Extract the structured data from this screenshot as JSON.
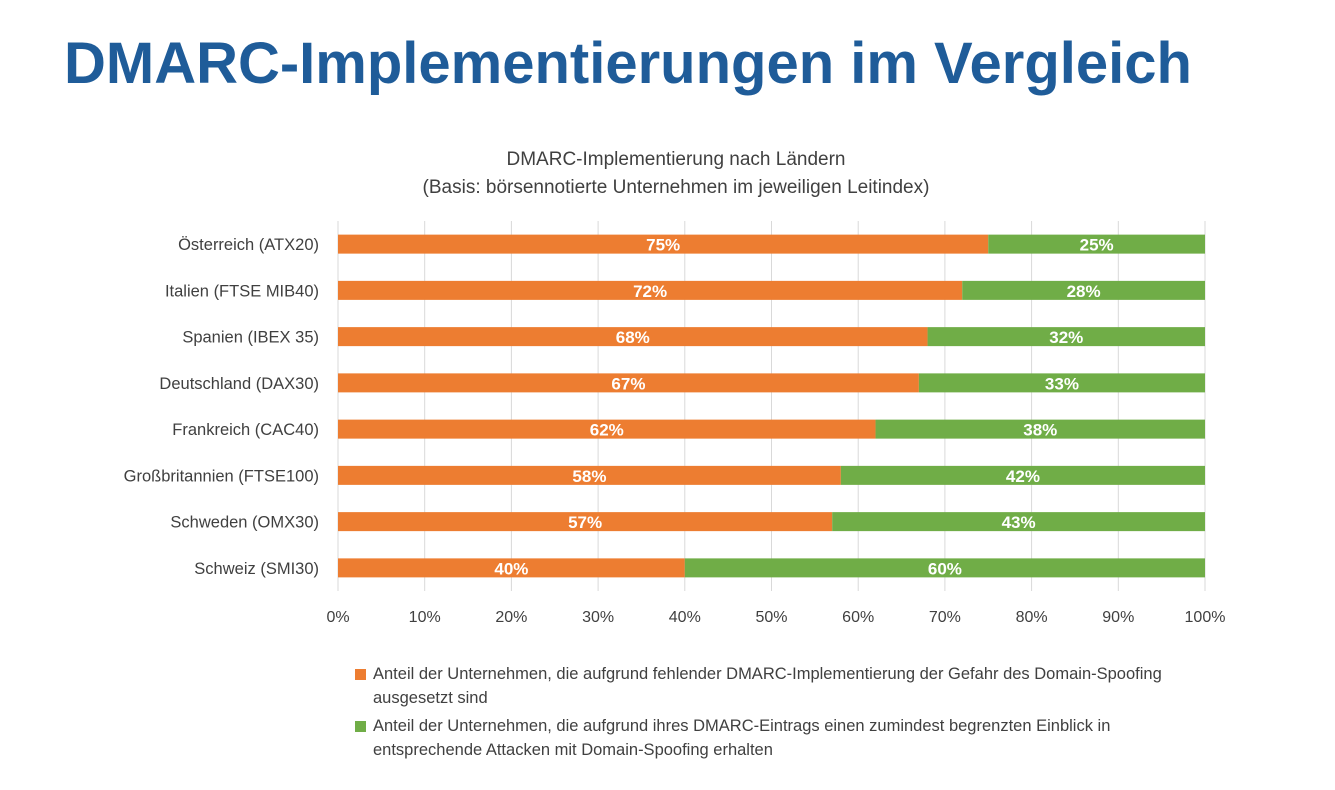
{
  "page": {
    "title": "DMARC-Implementierungen im Vergleich"
  },
  "colors": {
    "title": "#1f5c99",
    "series_1": "#ed7d31",
    "series_2": "#70ad47",
    "text": "#404040",
    "grid": "#d9d9d9"
  },
  "chart_data": {
    "type": "bar",
    "orientation": "horizontal",
    "stacked": true,
    "title": "DMARC-Implementierung nach Ländern",
    "subtitle": "(Basis: börsennotierte Unternehmen im jeweiligen Leitindex)",
    "categories": [
      "Österreich (ATX20)",
      "Italien (FTSE MIB40)",
      "Spanien (IBEX 35)",
      "Deutschland (DAX30)",
      "Frankreich (CAC40)",
      "Großbritannien (FTSE100)",
      "Schweden (OMX30)",
      "Schweiz (SMI30)"
    ],
    "series": [
      {
        "name": "Anteil der Unternehmen, die aufgrund fehlender DMARC-Implementierung der Gefahr des Domain-Spoofing ausgesetzt sind",
        "color": "#ed7d31",
        "values": [
          75,
          72,
          68,
          67,
          62,
          58,
          57,
          40
        ],
        "labels": [
          "75%",
          "72%",
          "68%",
          "67%",
          "62%",
          "58%",
          "57%",
          "40%"
        ]
      },
      {
        "name": "Anteil der Unternehmen, die aufgrund ihres DMARC-Eintrags einen zumindest begrenzten Einblick in entsprechende Attacken mit Domain-Spoofing erhalten",
        "color": "#70ad47",
        "values": [
          25,
          28,
          32,
          33,
          38,
          42,
          43,
          60
        ],
        "labels": [
          "25%",
          "28%",
          "32%",
          "33%",
          "38%",
          "42%",
          "43%",
          "60%"
        ]
      }
    ],
    "x_ticks": [
      "0%",
      "10%",
      "20%",
      "30%",
      "40%",
      "50%",
      "60%",
      "70%",
      "80%",
      "90%",
      "100%"
    ],
    "xlim": [
      0,
      100
    ],
    "xlabel": "",
    "ylabel": "",
    "grid": true,
    "legend_position": "bottom"
  }
}
